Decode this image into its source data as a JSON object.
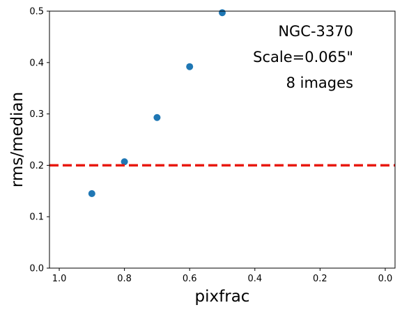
{
  "chart_data": {
    "type": "scatter",
    "title": "",
    "xlabel": "pixfrac",
    "ylabel": "rms/median",
    "xlim": [
      1.03,
      -0.03
    ],
    "ylim": [
      0.0,
      0.5
    ],
    "x_inverted": true,
    "xticks": [
      1.0,
      0.8,
      0.6,
      0.4,
      0.2,
      0.0
    ],
    "xtick_labels": [
      "1.0",
      "0.8",
      "0.6",
      "0.4",
      "0.2",
      "0.0"
    ],
    "yticks": [
      0.0,
      0.1,
      0.2,
      0.3,
      0.4,
      0.5
    ],
    "ytick_labels": [
      "0.0",
      "0.1",
      "0.2",
      "0.3",
      "0.4",
      "0.5"
    ],
    "grid": false,
    "series": [
      {
        "color": "#1f77b4",
        "x": [
          0.9,
          0.8,
          0.7,
          0.6,
          0.5
        ],
        "y": [
          0.145,
          0.207,
          0.293,
          0.392,
          0.497
        ]
      }
    ],
    "reference_line": {
      "orientation": "horizontal",
      "y": 0.2,
      "style": "dashed",
      "color": "#e8190f"
    },
    "annotations": [
      "NGC-3370",
      "Scale=0.065\"",
      "8 images"
    ]
  }
}
